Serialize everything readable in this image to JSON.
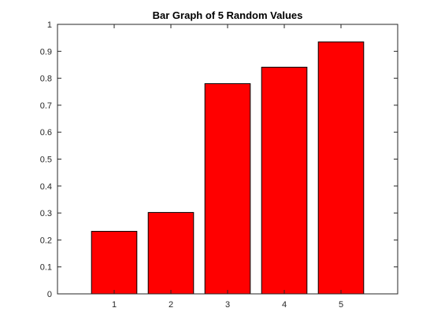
{
  "chart_data": {
    "type": "bar",
    "title": "Bar Graph of 5 Random Values",
    "xlabel": "",
    "ylabel": "",
    "categories": [
      "1",
      "2",
      "3",
      "4",
      "5"
    ],
    "values": [
      0.232,
      0.302,
      0.78,
      0.841,
      0.935
    ],
    "xlim": [
      0,
      6
    ],
    "ylim": [
      0,
      1
    ],
    "yticks": [
      "0",
      "0.1",
      "0.2",
      "0.3",
      "0.4",
      "0.5",
      "0.6",
      "0.7",
      "0.8",
      "0.9",
      "1"
    ],
    "grid": false,
    "legend": "none",
    "bar_color": "#ff0000",
    "edge_color": "#000000",
    "axis_color": "#262626"
  }
}
